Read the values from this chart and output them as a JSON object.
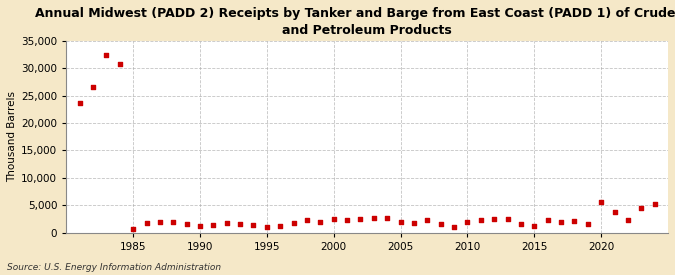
{
  "title": "Annual Midwest (PADD 2) Receipts by Tanker and Barge from East Coast (PADD 1) of Crude Oil\nand Petroleum Products",
  "ylabel": "Thousand Barrels",
  "source": "Source: U.S. Energy Information Administration",
  "background_color": "#f5e8c8",
  "plot_bg_color": "#ffffff",
  "marker_color": "#cc0000",
  "years": [
    1981,
    1982,
    1983,
    1984,
    1985,
    1986,
    1987,
    1988,
    1989,
    1990,
    1991,
    1992,
    1993,
    1994,
    1995,
    1996,
    1997,
    1998,
    1999,
    2000,
    2001,
    2002,
    2003,
    2004,
    2005,
    2006,
    2007,
    2008,
    2009,
    2010,
    2011,
    2012,
    2013,
    2014,
    2015,
    2016,
    2017,
    2018,
    2019,
    2020,
    2021,
    2022,
    2023,
    2024
  ],
  "values": [
    23700,
    26500,
    32500,
    30700,
    700,
    1800,
    1900,
    2000,
    1600,
    1200,
    1400,
    1700,
    1500,
    1300,
    1000,
    1200,
    1700,
    2200,
    1900,
    2400,
    2300,
    2400,
    2600,
    2600,
    2000,
    1800,
    2200,
    1500,
    1100,
    2000,
    2200,
    2500,
    2400,
    1600,
    1200,
    2300,
    2000,
    2100,
    1500,
    5500,
    3700,
    2300,
    4400,
    5300
  ],
  "ylim": [
    0,
    35000
  ],
  "yticks": [
    0,
    5000,
    10000,
    15000,
    20000,
    25000,
    30000,
    35000
  ],
  "xlim": [
    1980,
    2025
  ],
  "xticks": [
    1985,
    1990,
    1995,
    2000,
    2005,
    2010,
    2015,
    2020
  ],
  "grid_color": "#aaaaaa",
  "title_fontsize": 9,
  "tick_fontsize": 7.5,
  "ylabel_fontsize": 7.5
}
